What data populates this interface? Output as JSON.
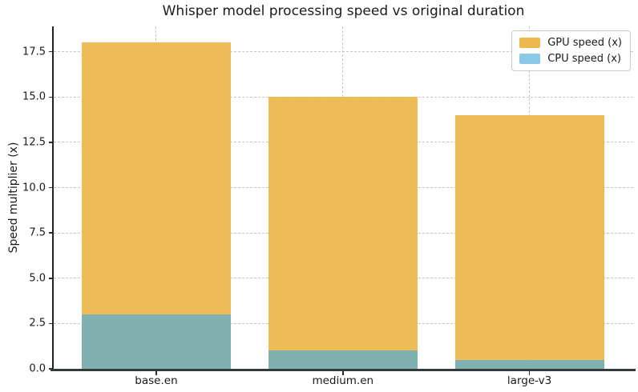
{
  "title": "Whisper model processing speed vs original duration",
  "chart_data": {
    "type": "bar",
    "mode": "overlay",
    "title": "Whisper model processing speed vs original duration",
    "xlabel": "",
    "ylabel": "Speed multiplier (x)",
    "categories": [
      "base.en",
      "medium.en",
      "large-v3"
    ],
    "series": [
      {
        "name": "GPU speed (x)",
        "values": [
          18,
          15,
          14
        ],
        "bar_color": "#ECB84B",
        "legend_color": "#EDB74F"
      },
      {
        "name": "CPU speed (x)",
        "values": [
          3,
          1,
          0.5
        ],
        "bar_color": "#7EB1AF",
        "legend_color": "#8AC7E9"
      }
    ],
    "ylim": [
      0,
      18.9
    ],
    "yticks": [
      0.0,
      2.5,
      5.0,
      7.5,
      10.0,
      12.5,
      15.0,
      17.5
    ],
    "ytick_labels": [
      "0.0",
      "2.5",
      "5.0",
      "7.5",
      "10.0",
      "12.5",
      "15.0",
      "17.5"
    ],
    "grid": true,
    "grid_style": "dashed",
    "legend_position": "upper right"
  },
  "colors": {
    "grid": "#c7c7c7",
    "spine_left": "#1d2324",
    "spine_bottom": "#333b3d",
    "text": "#1a1a1a",
    "background": "#ffffff"
  }
}
